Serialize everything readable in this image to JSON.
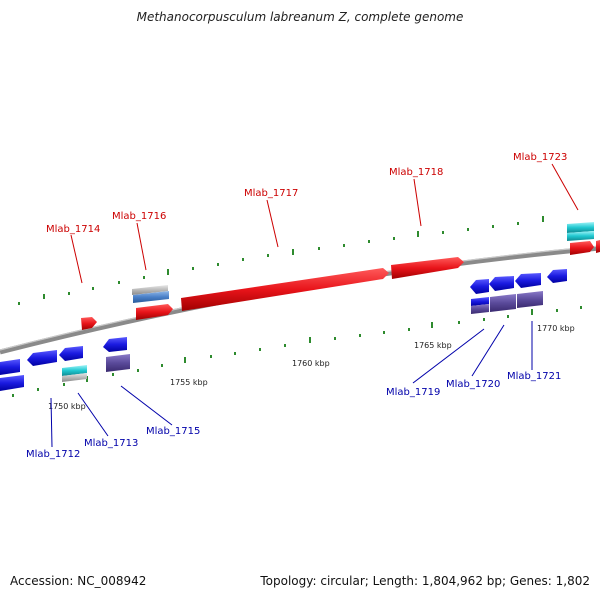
{
  "title": "Methanocorpusculum labreanum Z, complete genome",
  "footer": {
    "accession": "Accession: NC_008942",
    "summary": "Topology: circular; Length: 1,804,962 bp; Genes: 1,802"
  },
  "scale_labels": [
    "1750 kbp",
    "1755 kbp",
    "1760 kbp",
    "1765 kbp",
    "1770 kbp"
  ],
  "forward_genes": [
    "Mlab_1714",
    "Mlab_1716",
    "Mlab_1717",
    "Mlab_1718",
    "Mlab_1723"
  ],
  "reverse_genes": [
    "Mlab_1712",
    "Mlab_1713",
    "Mlab_1715",
    "Mlab_1719",
    "Mlab_1720",
    "Mlab_1721"
  ],
  "colors": {
    "forward_gene": "#e8141a",
    "reverse_gene": "#1a1ae0",
    "rna_feature": "#20c8d0",
    "other_feature": "#5a4a9a",
    "backbone": "#8a8a8a",
    "tick": "#2e8b2e"
  }
}
